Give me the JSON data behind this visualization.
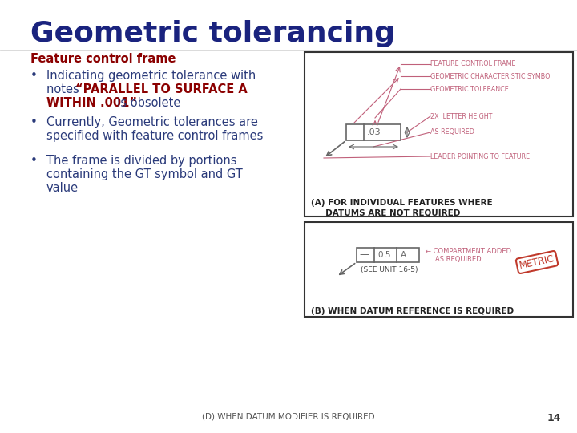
{
  "title": "Geometric tolerancing",
  "subtitle": "Feature control frame",
  "bg_color": "#ffffff",
  "title_color": "#1a237e",
  "subtitle_color": "#8b0000",
  "body_color": "#2a3a7a",
  "bold_color": "#8b0000",
  "footer_text": "(D) WHEN DATUM MODIFIER IS REQUIRED",
  "footer_page": "14",
  "diagram_A_lines": [
    "FEATURE CONTROL FRAME",
    "GEOMETRIC CHARACTERISTIC SYMBO",
    "GEOMETRIC TOLERANCE",
    "2X  LETTER HEIGHT",
    "AS REQUIRED",
    "LEADER POINTING TO FEATURE"
  ],
  "diagram_A_caption_1": "(A) FOR INDIVIDUAL FEATURES WHERE",
  "diagram_A_caption_2": "     DATUMS ARE NOT REQUIRED",
  "diagram_B_caption": "(B) WHEN DATUM REFERENCE IS REQUIRED",
  "diagram_color": "#c0607a",
  "frame_line_color": "#666666"
}
